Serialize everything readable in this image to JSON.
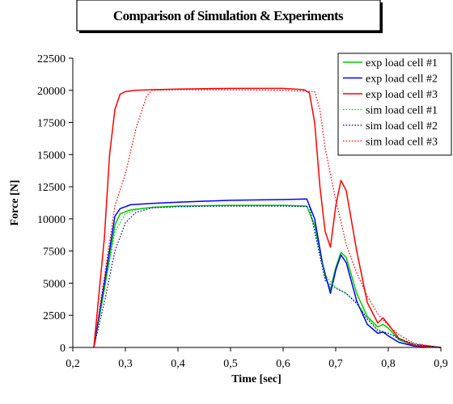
{
  "chart_data": {
    "type": "line",
    "title": "Comparison of Simulation & Experiments",
    "xlabel": "Time [sec]",
    "ylabel": "Force [N]",
    "xlim": [
      0.2,
      0.9
    ],
    "ylim": [
      0,
      22500
    ],
    "x_ticks": [
      "0,2",
      "0,3",
      "0,4",
      "0,5",
      "0,6",
      "0,7",
      "0,8",
      "0,9"
    ],
    "y_ticks": [
      "0",
      "2500",
      "5000",
      "7500",
      "10000",
      "12500",
      "15000",
      "17500",
      "20000",
      "22500"
    ],
    "grid": false,
    "legend_position": "top-right",
    "series": [
      {
        "name": "exp load cell #1",
        "color": "#00cc00",
        "dash": "solid",
        "x": [
          0.24,
          0.26,
          0.28,
          0.29,
          0.31,
          0.35,
          0.4,
          0.5,
          0.6,
          0.645,
          0.66,
          0.68,
          0.69,
          0.7,
          0.71,
          0.72,
          0.74,
          0.76,
          0.78,
          0.79,
          0.8,
          0.82,
          0.85,
          0.9
        ],
        "y": [
          0,
          4500,
          9500,
          10400,
          10700,
          10900,
          11000,
          11050,
          11050,
          11000,
          9500,
          5500,
          4500,
          6200,
          7400,
          7000,
          4200,
          2400,
          1600,
          1800,
          1500,
          600,
          150,
          0
        ]
      },
      {
        "name": "exp load cell #2",
        "color": "#0000ff",
        "dash": "solid",
        "x": [
          0.24,
          0.26,
          0.28,
          0.29,
          0.31,
          0.35,
          0.4,
          0.5,
          0.6,
          0.645,
          0.66,
          0.675,
          0.69,
          0.7,
          0.71,
          0.72,
          0.74,
          0.76,
          0.78,
          0.79,
          0.8,
          0.82,
          0.85,
          0.9
        ],
        "y": [
          0,
          5000,
          10200,
          10800,
          11100,
          11200,
          11300,
          11450,
          11500,
          11550,
          10000,
          6500,
          4200,
          6000,
          7200,
          6600,
          3600,
          1800,
          1100,
          1200,
          900,
          400,
          100,
          0
        ]
      },
      {
        "name": "exp load cell #3",
        "color": "#ff0000",
        "dash": "solid",
        "x": [
          0.24,
          0.26,
          0.27,
          0.28,
          0.29,
          0.3,
          0.32,
          0.35,
          0.4,
          0.5,
          0.6,
          0.64,
          0.65,
          0.66,
          0.67,
          0.68,
          0.69,
          0.7,
          0.71,
          0.72,
          0.74,
          0.76,
          0.78,
          0.79,
          0.8,
          0.82,
          0.85,
          0.9
        ],
        "y": [
          0,
          8500,
          15000,
          18500,
          19700,
          19900,
          20000,
          20050,
          20100,
          20150,
          20150,
          20050,
          19800,
          17500,
          12500,
          9000,
          7800,
          11000,
          13000,
          12200,
          7500,
          3500,
          1900,
          2300,
          1800,
          700,
          150,
          0
        ]
      },
      {
        "name": "sim load cell #1",
        "color": "#00cc00",
        "dash": "dotted",
        "x": [
          0.24,
          0.26,
          0.28,
          0.3,
          0.32,
          0.35,
          0.4,
          0.5,
          0.6,
          0.65,
          0.66,
          0.68,
          0.7,
          0.72,
          0.74,
          0.76,
          0.78,
          0.8,
          0.82,
          0.85,
          0.9
        ],
        "y": [
          0,
          4500,
          9000,
          10400,
          10700,
          10900,
          10950,
          11000,
          11000,
          10950,
          9000,
          5600,
          4700,
          4200,
          3500,
          2300,
          1400,
          1100,
          700,
          250,
          0
        ]
      },
      {
        "name": "sim load cell #2",
        "color": "#0000aa",
        "dash": "dotted",
        "x": [
          0.24,
          0.26,
          0.28,
          0.3,
          0.32,
          0.35,
          0.4,
          0.5,
          0.6,
          0.65,
          0.66,
          0.68,
          0.7,
          0.72,
          0.74,
          0.76,
          0.78,
          0.8,
          0.82,
          0.85,
          0.9
        ],
        "y": [
          0,
          3500,
          7500,
          9700,
          10500,
          10850,
          10950,
          11000,
          11000,
          10950,
          9000,
          5200,
          4600,
          4200,
          3400,
          2200,
          1300,
          1100,
          700,
          250,
          0
        ]
      },
      {
        "name": "sim load cell #3",
        "color": "#ff0000",
        "dash": "dotted",
        "x": [
          0.24,
          0.26,
          0.28,
          0.3,
          0.32,
          0.34,
          0.35,
          0.4,
          0.5,
          0.6,
          0.66,
          0.67,
          0.68,
          0.69,
          0.7,
          0.72,
          0.74,
          0.76,
          0.78,
          0.8,
          0.82,
          0.85,
          0.9
        ],
        "y": [
          0,
          5500,
          11000,
          13500,
          17000,
          19500,
          20000,
          20050,
          20050,
          20000,
          19900,
          18500,
          15500,
          13500,
          11500,
          8000,
          5800,
          4000,
          2600,
          1700,
          1000,
          300,
          0
        ]
      }
    ]
  }
}
